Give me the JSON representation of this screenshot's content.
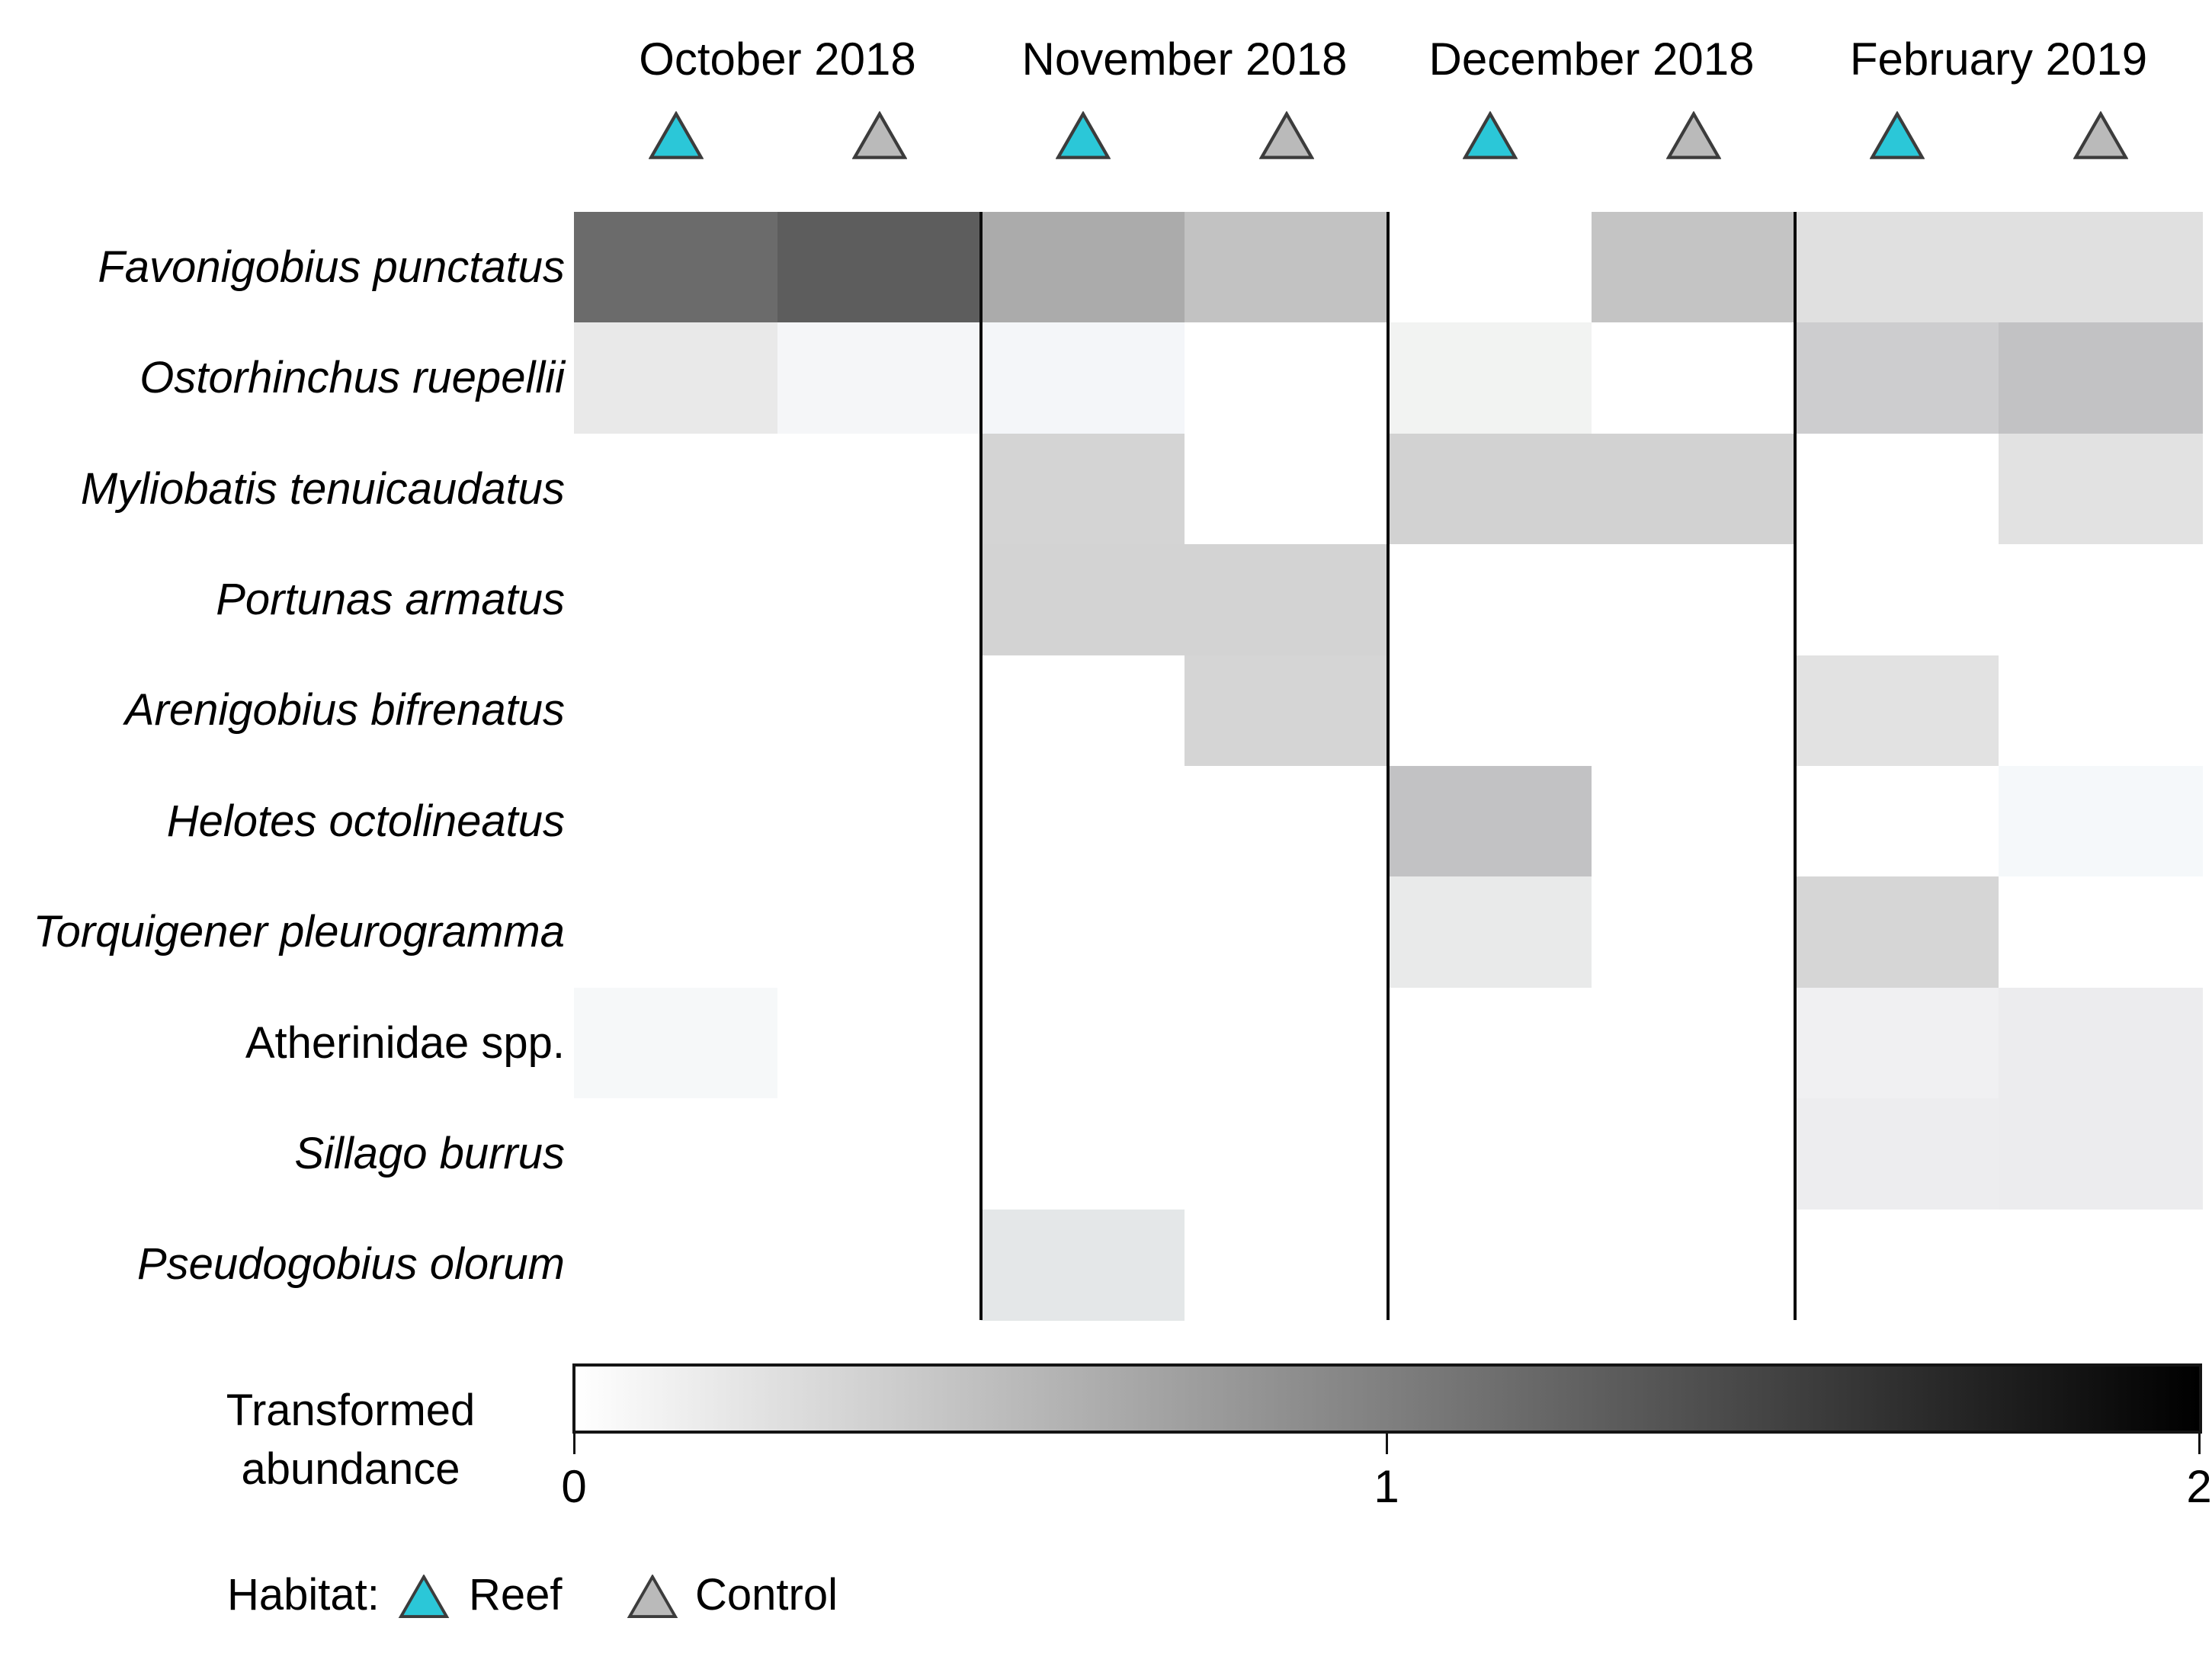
{
  "header": {
    "months": [
      "October 2018",
      "November 2018",
      "December 2018",
      "February 2019"
    ],
    "column_habitats": [
      "Reef",
      "Control",
      "Reef",
      "Control",
      "Reef",
      "Control",
      "Reef",
      "Control"
    ]
  },
  "legend": {
    "title": "Habitat:",
    "items": [
      {
        "label": "Reef",
        "color": "#2BC7D8"
      },
      {
        "label": "Control",
        "color": "#BABABA"
      }
    ],
    "triangle_outline": "#3C3C3C"
  },
  "colorbar": {
    "title_line1": "Transformed",
    "title_line2": "abundance",
    "gradient_start": "#ffffff",
    "gradient_end": "#000000",
    "ticks": [
      {
        "label": "0",
        "value": 0
      },
      {
        "label": "1",
        "value": 1
      },
      {
        "label": "2",
        "value": 2
      }
    ]
  },
  "chart_data": {
    "type": "heatmap",
    "value_label": "Transformed abundance",
    "value_range": [
      0,
      2
    ],
    "legend_position": "bottom",
    "column_groups": [
      "October 2018",
      "November 2018",
      "December 2018",
      "February 2019"
    ],
    "columns": [
      "October 2018 Reef",
      "October 2018 Control",
      "November 2018 Reef",
      "November 2018 Control",
      "December 2018 Reef",
      "December 2018 Control",
      "February 2019 Reef",
      "February 2019 Control"
    ],
    "rows": [
      {
        "species": "Favonigobius punctatus",
        "italic": true,
        "values": [
          1.15,
          1.25,
          0.65,
          0.5,
          0,
          0.45,
          0.25,
          0.25
        ],
        "colors": [
          "#6b6b6b",
          "#5d5d5d",
          "#ababab",
          "#c2c2c2",
          "#ffffff",
          "#c4c4c4",
          "#e0e0e0",
          "#e0e0e0"
        ]
      },
      {
        "species": "Ostorhinchus ruepellii",
        "italic": true,
        "values": [
          0.15,
          0.05,
          0.05,
          0,
          0.1,
          0,
          0.4,
          0.5
        ],
        "colors": [
          "#e9e9e9",
          "#f5f6f8",
          "#f4f6f9",
          "#ffffff",
          "#f2f3f2",
          "#ffffff",
          "#cdcdcf",
          "#c2c2c4"
        ]
      },
      {
        "species": "Myliobatis tenuicaudatus",
        "italic": true,
        "values": [
          0,
          0,
          0.35,
          0,
          0.35,
          0.35,
          0,
          0.25
        ],
        "colors": [
          "#ffffff",
          "#ffffff",
          "#d4d4d4",
          "#ffffff",
          "#d2d2d2",
          "#d2d2d2",
          "#ffffff",
          "#e2e2e2"
        ]
      },
      {
        "species": "Portunas armatus",
        "italic": true,
        "values": [
          0,
          0,
          0.35,
          0.35,
          0,
          0,
          0,
          0
        ],
        "colors": [
          "#ffffff",
          "#ffffff",
          "#d3d3d3",
          "#d3d3d3",
          "#ffffff",
          "#ffffff",
          "#ffffff",
          "#ffffff"
        ]
      },
      {
        "species": "Arenigobius bifrenatus",
        "italic": true,
        "values": [
          0,
          0,
          0,
          0.35,
          0,
          0,
          0.25,
          0
        ],
        "colors": [
          "#ffffff",
          "#ffffff",
          "#ffffff",
          "#d5d5d5",
          "#ffffff",
          "#ffffff",
          "#e2e2e2",
          "#ffffff"
        ]
      },
      {
        "species": "Helotes octolineatus",
        "italic": true,
        "values": [
          0,
          0,
          0,
          0,
          0.5,
          0,
          0,
          0.05
        ],
        "colors": [
          "#ffffff",
          "#ffffff",
          "#ffffff",
          "#ffffff",
          "#c2c2c4",
          "#ffffff",
          "#ffffff",
          "#f5f8fa"
        ]
      },
      {
        "species": "Torquigener pleurogramma",
        "italic": true,
        "values": [
          0,
          0,
          0,
          0,
          0.15,
          0,
          0.3,
          0
        ],
        "colors": [
          "#ffffff",
          "#ffffff",
          "#ffffff",
          "#ffffff",
          "#e9eaea",
          "#ffffff",
          "#d6d6d6",
          "#ffffff"
        ]
      },
      {
        "species": "Atherinidae spp.",
        "italic": false,
        "values": [
          0.05,
          0,
          0,
          0,
          0,
          0,
          0.1,
          0.15
        ],
        "colors": [
          "#f6f8f9",
          "#ffffff",
          "#ffffff",
          "#ffffff",
          "#ffffff",
          "#ffffff",
          "#f0f0f2",
          "#ececee"
        ]
      },
      {
        "species": "Sillago burrus",
        "italic": true,
        "values": [
          0,
          0,
          0,
          0,
          0,
          0,
          0.15,
          0.15
        ],
        "colors": [
          "#ffffff",
          "#ffffff",
          "#ffffff",
          "#ffffff",
          "#ffffff",
          "#ffffff",
          "#ededef",
          "#ececee"
        ]
      },
      {
        "species": "Pseudogobius olorum",
        "italic": true,
        "values": [
          0,
          0,
          0.2,
          0,
          0,
          0,
          0,
          0
        ],
        "colors": [
          "#ffffff",
          "#ffffff",
          "#e4e7e8",
          "#ffffff",
          "#ffffff",
          "#ffffff",
          "#ffffff",
          "#ffffff"
        ]
      }
    ]
  }
}
